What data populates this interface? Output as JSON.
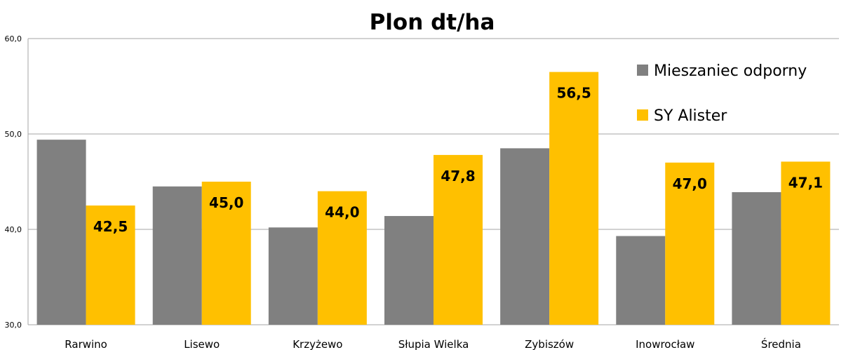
{
  "chart_data": {
    "type": "bar",
    "title": "Plon dt/ha",
    "xlabel": "",
    "ylabel": "",
    "ylim": [
      30,
      60
    ],
    "yticks": [
      "30,0",
      "40,0",
      "50,0",
      "60,0"
    ],
    "categories": [
      "Rarwino",
      "Lisewo",
      "Krzyżewo",
      "Słupia Wielka",
      "Zybiszów",
      "Inowrocław",
      "Średnia"
    ],
    "series": [
      {
        "name": "Mieszaniec odporny",
        "color": "#808080",
        "values": [
          49.4,
          44.5,
          40.2,
          41.4,
          48.5,
          39.3,
          43.9
        ],
        "labels": [
          "",
          "",
          "",
          "",
          "",
          "",
          ""
        ]
      },
      {
        "name": "SY Alister",
        "color": "#FFC000",
        "values": [
          42.5,
          45.0,
          44.0,
          47.8,
          56.5,
          47.0,
          47.1
        ],
        "labels": [
          "42,5",
          "45,0",
          "44,0",
          "47,8",
          "56,5",
          "47,0",
          "47,1"
        ]
      }
    ],
    "grid": true,
    "legend_position": "top-right"
  }
}
